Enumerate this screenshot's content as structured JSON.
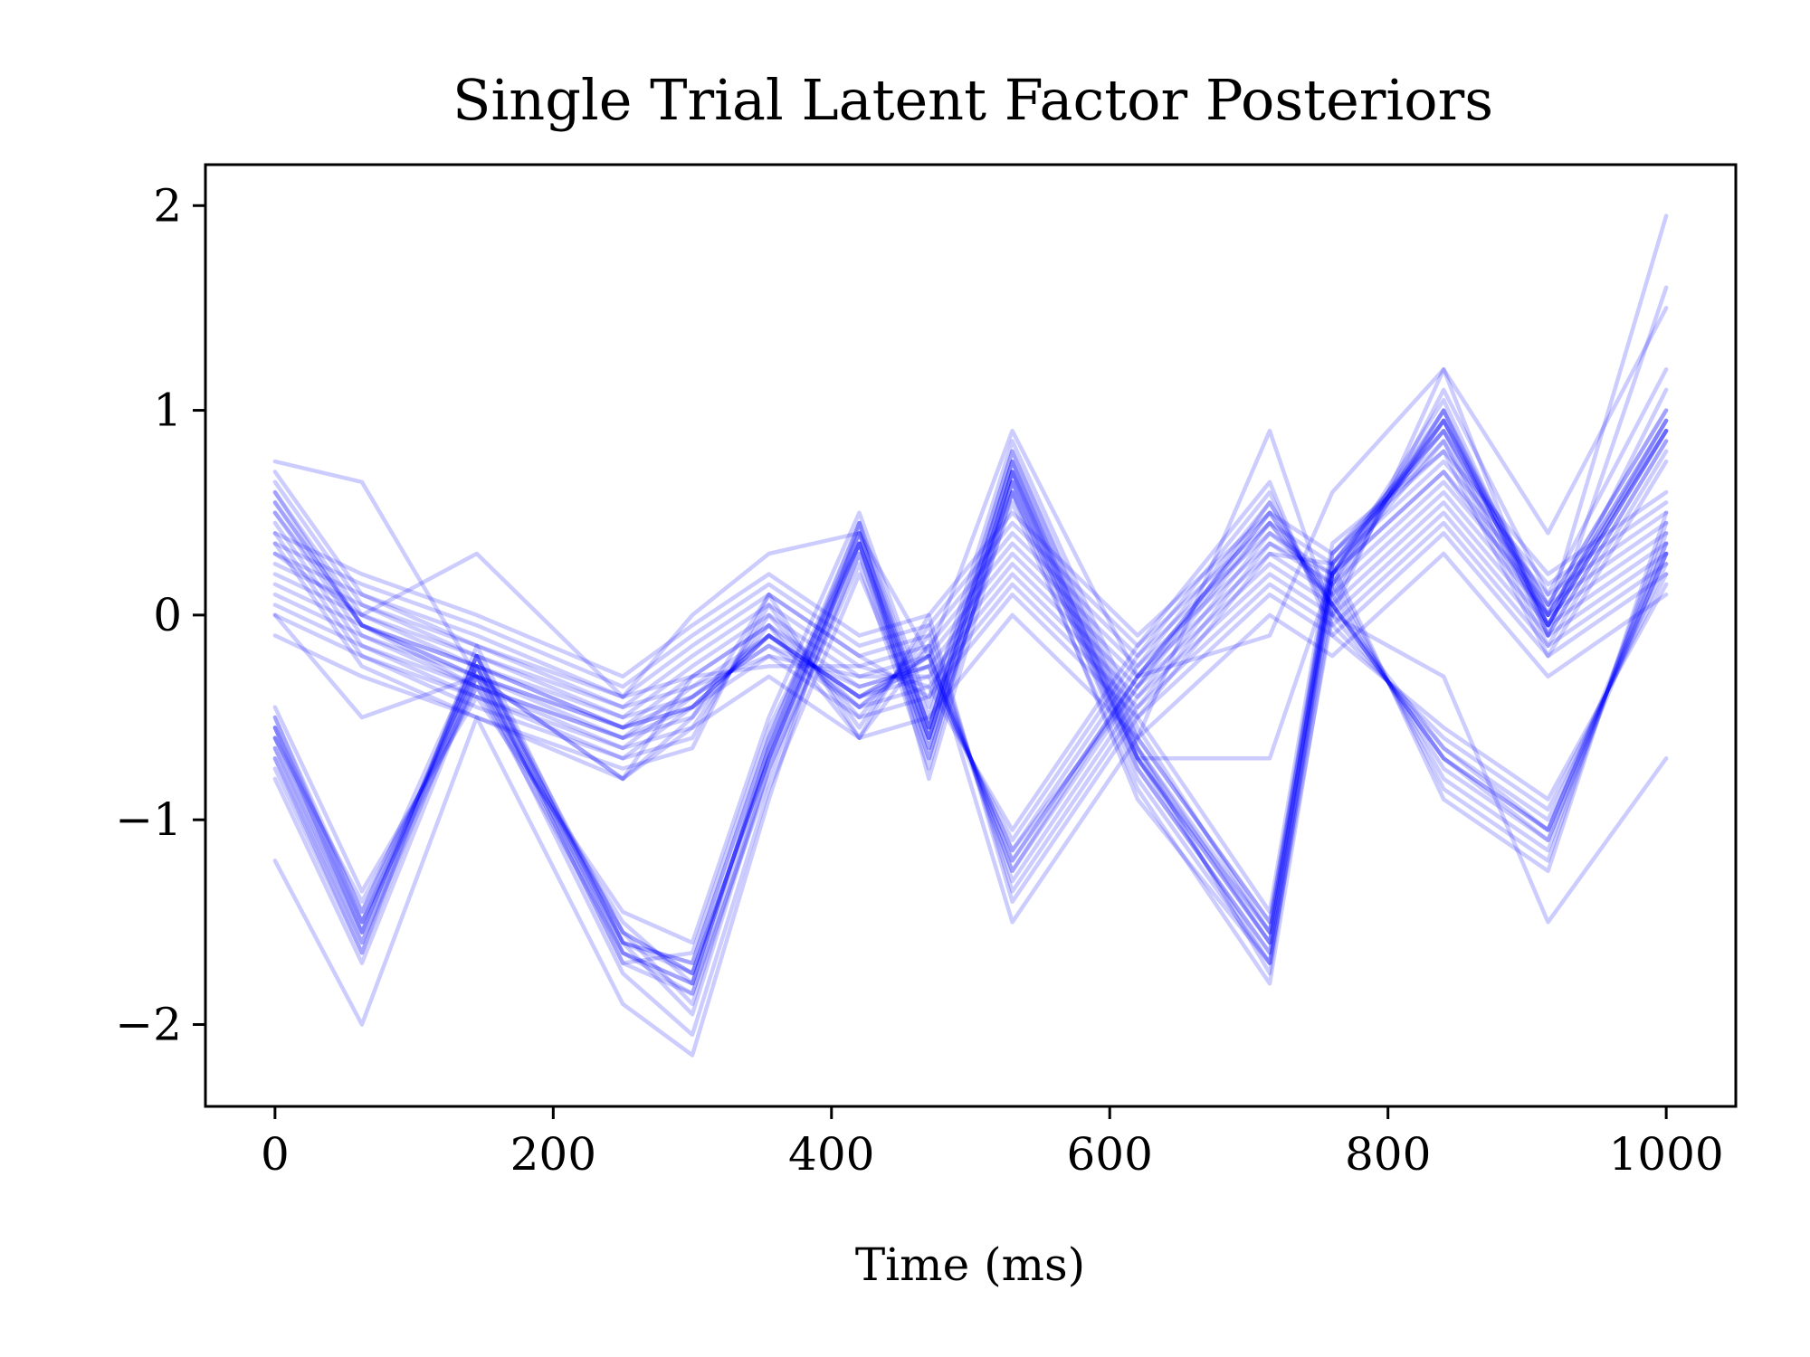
{
  "chart_data": {
    "type": "line",
    "title": "Single Trial Latent Factor Posteriors",
    "xlabel": "Time (ms)",
    "ylabel": "",
    "xlim": [
      -50,
      1050
    ],
    "ylim": [
      -2.4,
      2.2
    ],
    "xticks": [
      0,
      200,
      400,
      600,
      800,
      1000
    ],
    "xtick_labels": [
      "0",
      "200",
      "400",
      "600",
      "800",
      "1000"
    ],
    "yticks": [
      2,
      1,
      0,
      -1,
      -2
    ],
    "ytick_labels": [
      "2",
      "1",
      "0",
      "−1",
      "−2"
    ],
    "grid": false,
    "legend": "none",
    "line_color": "#0000ff",
    "line_alpha": 0.2,
    "x": [
      0,
      62.5,
      145,
      250,
      300,
      355,
      420,
      470,
      530,
      620,
      715,
      760,
      840,
      915,
      1000
    ],
    "series": [
      {
        "values": [
          -0.65,
          -1.55,
          -0.25,
          -1.55,
          -1.75,
          -0.7,
          0.35,
          -0.6,
          0.7,
          -0.7,
          -1.6,
          0.2,
          0.95,
          -0.05,
          0.9
        ]
      },
      {
        "values": [
          -0.55,
          -1.45,
          -0.3,
          -1.6,
          -1.7,
          -0.6,
          0.4,
          -0.55,
          0.75,
          -0.6,
          -1.5,
          0.25,
          0.9,
          -0.1,
          0.85
        ]
      },
      {
        "values": [
          -0.7,
          -1.6,
          -0.2,
          -1.65,
          -1.85,
          -0.8,
          0.3,
          -0.7,
          0.65,
          -0.8,
          -1.7,
          0.1,
          1.0,
          0.0,
          0.95
        ]
      },
      {
        "values": [
          -0.6,
          -1.4,
          -0.35,
          -1.5,
          -1.8,
          -0.65,
          0.45,
          -0.5,
          0.8,
          -0.55,
          -1.55,
          0.3,
          0.85,
          -0.15,
          0.8
        ]
      },
      {
        "values": [
          -0.5,
          -1.5,
          -0.25,
          -1.7,
          -1.65,
          -0.55,
          0.35,
          -0.65,
          0.6,
          -0.75,
          -1.65,
          0.15,
          0.95,
          0.05,
          1.0
        ]
      },
      {
        "values": [
          -0.75,
          -1.65,
          -0.15,
          -1.6,
          -1.95,
          -0.75,
          0.25,
          -0.75,
          0.7,
          -0.65,
          -1.75,
          0.2,
          1.05,
          -0.05,
          1.1
        ]
      },
      {
        "values": [
          -0.45,
          -1.35,
          -0.4,
          -1.45,
          -1.6,
          -0.5,
          0.5,
          -0.45,
          0.85,
          -0.5,
          -1.45,
          0.35,
          0.8,
          -0.2,
          0.75
        ]
      },
      {
        "values": [
          -0.8,
          -1.7,
          -0.3,
          -1.75,
          -2.05,
          -0.85,
          0.2,
          -0.6,
          0.55,
          -0.85,
          -1.8,
          0.05,
          1.1,
          0.1,
          1.2
        ]
      },
      {
        "values": [
          -1.2,
          -2.0,
          -0.5,
          -1.9,
          -2.15,
          -0.9,
          0.45,
          -0.8,
          0.6,
          -0.9,
          -1.7,
          0.0,
          1.2,
          -0.1,
          1.6
        ]
      },
      {
        "values": [
          -0.6,
          -1.55,
          -0.2,
          -1.55,
          -1.75,
          -0.7,
          0.4,
          -0.55,
          0.65,
          -0.7,
          -1.6,
          0.25,
          0.9,
          0.0,
          0.9
        ]
      },
      {
        "values": [
          -0.55,
          -1.5,
          -0.25,
          -1.65,
          -1.8,
          -0.65,
          0.35,
          -0.6,
          0.75,
          -0.65,
          -1.55,
          0.2,
          0.95,
          -0.05,
          0.95
        ]
      },
      {
        "values": [
          -0.65,
          -1.6,
          -0.3,
          -1.55,
          -1.9,
          -0.75,
          0.3,
          -0.65,
          0.7,
          -0.75,
          -1.65,
          0.15,
          1.0,
          -0.1,
          0.85
        ]
      },
      {
        "values": [
          -0.5,
          -1.45,
          -0.2,
          -1.6,
          -1.7,
          -0.6,
          0.45,
          -0.55,
          0.8,
          -0.6,
          -1.5,
          0.3,
          0.9,
          0.05,
          1.0
        ]
      },
      {
        "values": [
          -0.7,
          -1.65,
          -0.25,
          -1.7,
          -1.85,
          -0.7,
          0.35,
          -0.7,
          0.65,
          -0.7,
          -1.7,
          0.2,
          0.85,
          -0.05,
          0.9
        ]
      },
      {
        "values": [
          -0.6,
          -1.5,
          -0.35,
          -1.65,
          -1.8,
          -0.65,
          0.4,
          -0.6,
          0.7,
          -0.65,
          -1.6,
          0.25,
          0.95,
          0.0,
          0.95
        ]
      },
      {
        "values": [
          -0.55,
          -1.55,
          -0.2,
          -1.6,
          -1.75,
          -0.7,
          0.35,
          -0.55,
          0.75,
          -0.7,
          -1.55,
          0.2,
          1.0,
          -0.05,
          0.9
        ]
      },
      {
        "values": [
          0.55,
          -0.05,
          -0.3,
          -0.55,
          -0.45,
          -0.1,
          -0.4,
          -0.2,
          -1.2,
          -0.3,
          0.5,
          0.05,
          -0.7,
          -1.05,
          0.3
        ]
      },
      {
        "values": [
          0.5,
          -0.1,
          -0.35,
          -0.6,
          -0.5,
          -0.05,
          -0.45,
          -0.15,
          -1.25,
          -0.35,
          0.45,
          0.1,
          -0.75,
          -1.1,
          0.35
        ]
      },
      {
        "values": [
          0.6,
          0.0,
          -0.25,
          -0.5,
          -0.4,
          -0.15,
          -0.35,
          -0.25,
          -1.15,
          -0.25,
          0.55,
          0.0,
          -0.65,
          -1.0,
          0.25
        ]
      },
      {
        "values": [
          0.45,
          -0.15,
          -0.4,
          -0.65,
          -0.55,
          0.0,
          -0.5,
          -0.1,
          -1.3,
          -0.4,
          0.4,
          0.15,
          -0.8,
          -1.15,
          0.4
        ]
      },
      {
        "values": [
          0.65,
          0.05,
          -0.2,
          -0.45,
          -0.35,
          -0.2,
          -0.3,
          -0.3,
          -1.1,
          -0.2,
          0.6,
          -0.05,
          -0.6,
          -0.95,
          0.2
        ]
      },
      {
        "values": [
          0.4,
          -0.2,
          -0.45,
          -0.7,
          -0.6,
          0.05,
          -0.55,
          -0.05,
          -1.35,
          -0.45,
          0.35,
          0.2,
          -0.85,
          -1.2,
          0.45
        ]
      },
      {
        "values": [
          0.7,
          0.1,
          -0.15,
          -0.4,
          -0.3,
          -0.25,
          -0.25,
          -0.35,
          -1.05,
          -0.15,
          0.65,
          -0.1,
          -0.55,
          -0.9,
          0.15
        ]
      },
      {
        "values": [
          0.35,
          -0.25,
          -0.5,
          -0.75,
          -0.65,
          0.1,
          -0.6,
          0.0,
          -1.4,
          -0.5,
          0.3,
          0.25,
          -0.9,
          -1.25,
          0.5
        ]
      },
      {
        "values": [
          0.75,
          0.65,
          -0.3,
          -0.8,
          -0.3,
          -0.05,
          -0.6,
          -0.15,
          -1.5,
          -0.6,
          0.9,
          0.0,
          -0.3,
          -1.5,
          -0.7
        ]
      },
      {
        "values": [
          0.55,
          -0.05,
          -0.3,
          -0.55,
          -0.45,
          -0.1,
          -0.4,
          -0.2,
          -1.2,
          -0.3,
          0.5,
          0.05,
          -0.7,
          -1.05,
          0.3
        ]
      },
      {
        "values": [
          0.5,
          -0.05,
          -0.35,
          -0.6,
          -0.45,
          -0.1,
          -0.45,
          -0.2,
          -1.25,
          -0.3,
          0.45,
          0.05,
          -0.7,
          -1.1,
          0.3
        ]
      },
      {
        "values": [
          0.6,
          -0.05,
          -0.25,
          -0.55,
          -0.4,
          -0.1,
          -0.4,
          -0.25,
          -1.15,
          -0.35,
          0.55,
          0.05,
          -0.65,
          -1.05,
          0.35
        ]
      },
      {
        "values": [
          0.3,
          0.1,
          -0.1,
          -0.4,
          -0.15,
          0.1,
          -0.2,
          -0.1,
          0.4,
          -0.2,
          0.4,
          0.2,
          0.7,
          0.1,
          0.5
        ]
      },
      {
        "values": [
          0.2,
          0.0,
          -0.2,
          -0.5,
          -0.25,
          0.0,
          -0.3,
          -0.2,
          0.3,
          -0.3,
          0.3,
          0.1,
          0.6,
          0.0,
          0.4
        ]
      },
      {
        "values": [
          0.4,
          0.2,
          0.0,
          -0.3,
          -0.05,
          0.2,
          -0.1,
          0.0,
          0.5,
          -0.1,
          0.5,
          0.3,
          0.8,
          0.2,
          0.6
        ]
      },
      {
        "values": [
          0.1,
          -0.1,
          -0.3,
          -0.6,
          -0.35,
          -0.1,
          -0.4,
          -0.3,
          0.2,
          -0.4,
          0.2,
          0.0,
          0.5,
          -0.1,
          0.3
        ]
      },
      {
        "values": [
          0.0,
          -0.2,
          -0.4,
          -0.7,
          -0.45,
          -0.2,
          -0.5,
          -0.4,
          0.1,
          -0.5,
          0.1,
          -0.1,
          0.4,
          -0.2,
          0.2
        ]
      },
      {
        "values": [
          0.35,
          0.15,
          -0.05,
          -0.35,
          -0.1,
          0.15,
          -0.15,
          -0.05,
          0.45,
          -0.15,
          0.45,
          0.25,
          0.75,
          0.15,
          0.55
        ]
      },
      {
        "values": [
          -0.1,
          -0.3,
          -0.5,
          -0.8,
          -0.55,
          -0.3,
          -0.6,
          -0.5,
          0.0,
          -0.6,
          0.0,
          -0.2,
          0.3,
          -0.3,
          0.1
        ]
      },
      {
        "values": [
          0.25,
          0.05,
          -0.15,
          -0.45,
          -0.2,
          0.05,
          -0.25,
          -0.15,
          0.35,
          -0.25,
          0.35,
          0.15,
          0.65,
          0.05,
          0.45
        ]
      },
      {
        "values": [
          0.15,
          -0.05,
          -0.25,
          -0.55,
          -0.3,
          -0.05,
          -0.35,
          -0.25,
          0.25,
          -0.35,
          0.25,
          0.05,
          0.55,
          -0.05,
          0.35
        ]
      },
      {
        "values": [
          0.05,
          -0.15,
          -0.35,
          -0.65,
          -0.4,
          -0.15,
          -0.45,
          -0.35,
          0.15,
          -0.45,
          0.15,
          -0.05,
          0.45,
          -0.15,
          0.25
        ]
      },
      {
        "values": [
          0.0,
          -0.5,
          -0.3,
          -0.8,
          -0.5,
          0.1,
          -0.2,
          -0.4,
          0.6,
          -0.7,
          -0.7,
          0.2,
          0.7,
          0.0,
          1.95
        ]
      },
      {
        "values": [
          0.3,
          0.0,
          0.3,
          -0.4,
          0.0,
          0.3,
          0.4,
          -0.2,
          0.9,
          -0.3,
          -0.1,
          0.6,
          1.2,
          0.4,
          1.5
        ]
      }
    ]
  }
}
